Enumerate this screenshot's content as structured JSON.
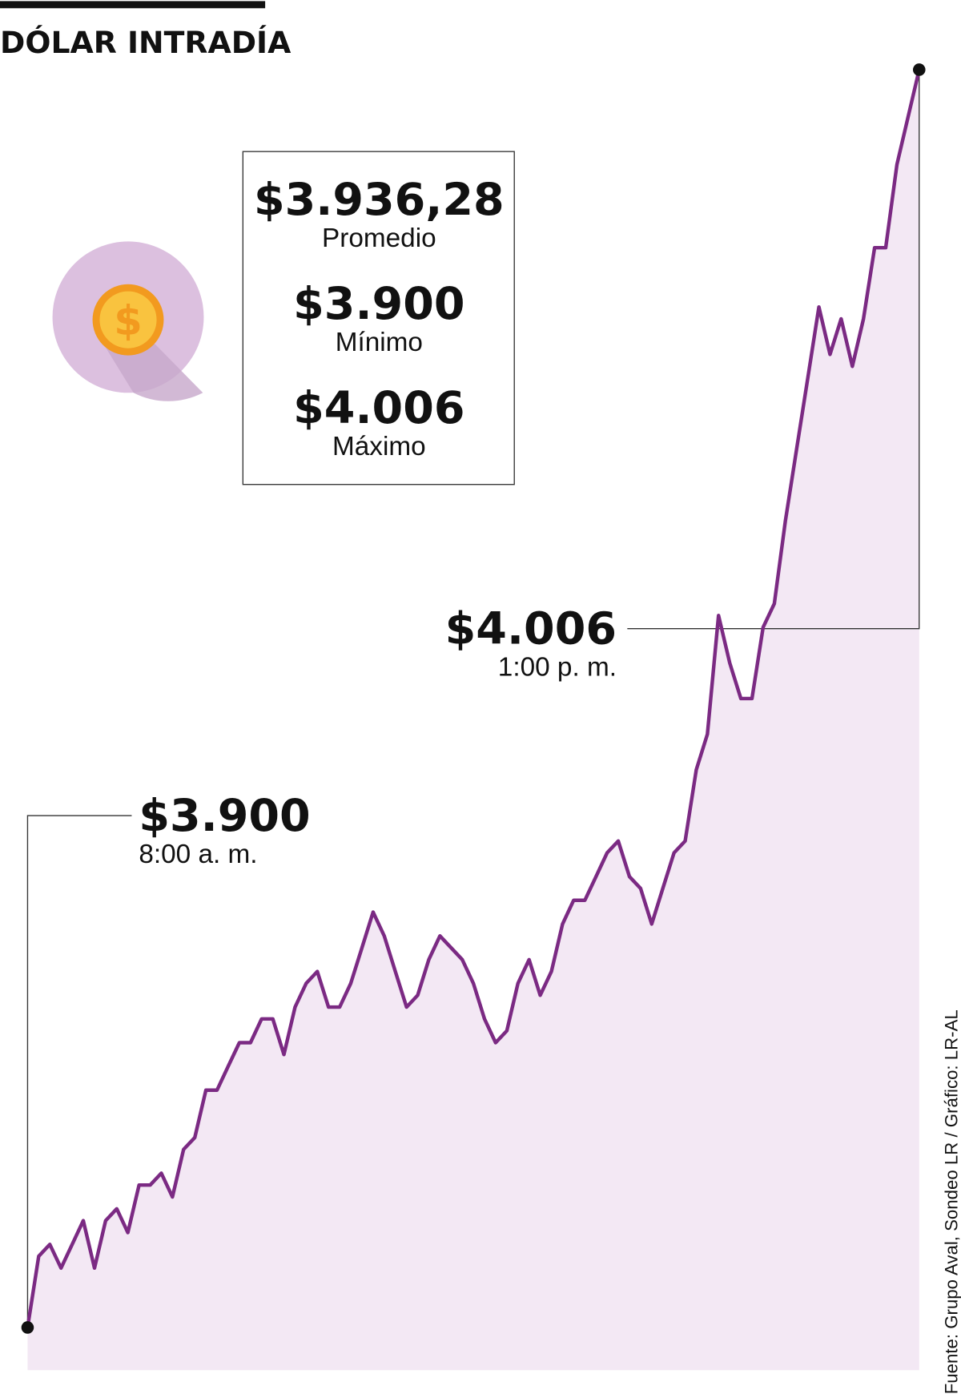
{
  "chart_data": {
    "type": "line",
    "title": "DÓLAR INTRADÍA",
    "color": "#7b2a83",
    "area_color": "#f3e8f4",
    "values": [
      3900,
      3906,
      3907,
      3905,
      3907,
      3909,
      3905,
      3909,
      3910,
      3908,
      3912,
      3912,
      3913,
      3911,
      3915,
      3916,
      3920,
      3920,
      3922,
      3924,
      3924,
      3926,
      3926,
      3923,
      3927,
      3929,
      3930,
      3927,
      3927,
      3929,
      3932,
      3935,
      3933,
      3930,
      3927,
      3928,
      3931,
      3933,
      3932,
      3931,
      3929,
      3926,
      3924,
      3925,
      3929,
      3931,
      3928,
      3930,
      3934,
      3936,
      3936,
      3938,
      3940,
      3941,
      3938,
      3937,
      3934,
      3937,
      3940,
      3941,
      3947,
      3950,
      3960,
      3956,
      3953,
      3953,
      3959,
      3961,
      3968,
      3974,
      3980,
      3986,
      3982,
      3985,
      3981,
      3985,
      3991,
      3991,
      3998,
      4002,
      4006
    ],
    "summary": [
      {
        "amount": "$3.936,28",
        "label": "Promedio"
      },
      {
        "amount": "$3.900",
        "label": "Mínimo"
      },
      {
        "amount": "$4.006",
        "label": "Máximo"
      }
    ],
    "annotations": [
      {
        "text": "$3.900",
        "time": "8:00 a. m."
      },
      {
        "text": "$4.006",
        "time": "1:00 p. m."
      }
    ],
    "source": "Fuente: Grupo Aval, Sondeo LR  / Gráfico: LR-AL"
  }
}
